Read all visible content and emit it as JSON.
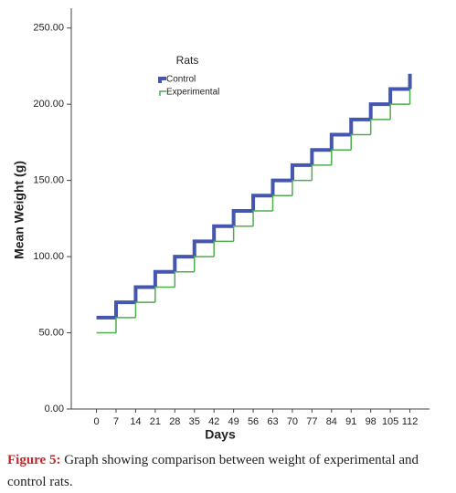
{
  "chart_data": {
    "type": "step",
    "y_label": "Mean Weight (g)",
    "x_label": "Days",
    "legend_title": "Rats",
    "x": [
      0,
      7,
      14,
      21,
      28,
      35,
      42,
      49,
      56,
      63,
      70,
      77,
      84,
      91,
      98,
      105,
      112
    ],
    "series": [
      {
        "name": "Control",
        "color": "#4456b0",
        "values": [
          60,
          70,
          80,
          90,
          100,
          110,
          120,
          130,
          140,
          150,
          160,
          170,
          180,
          190,
          200,
          210,
          220
        ]
      },
      {
        "name": "Experimental",
        "color": "#4cae4c",
        "values": [
          50,
          60,
          70,
          80,
          90,
          100,
          110,
          120,
          130,
          140,
          150,
          160,
          170,
          180,
          190,
          200,
          210
        ]
      }
    ],
    "xlim": [
      -9,
      119
    ],
    "ylim": [
      0,
      263
    ],
    "xticks": [
      0,
      7,
      14,
      21,
      28,
      35,
      42,
      49,
      56,
      63,
      70,
      77,
      84,
      91,
      98,
      105,
      112
    ],
    "yticks": [
      {
        "value": 0,
        "label": "0.00"
      },
      {
        "value": 50,
        "label": "50.00"
      },
      {
        "value": 100,
        "label": "100.00"
      },
      {
        "value": 150,
        "label": "150.00"
      },
      {
        "value": 200,
        "label": "200.00"
      },
      {
        "value": 250,
        "label": "250.00"
      }
    ]
  },
  "caption": {
    "label": "Figure 5:",
    "text": "Graph showing comparison between weight of experimental and control rats."
  }
}
